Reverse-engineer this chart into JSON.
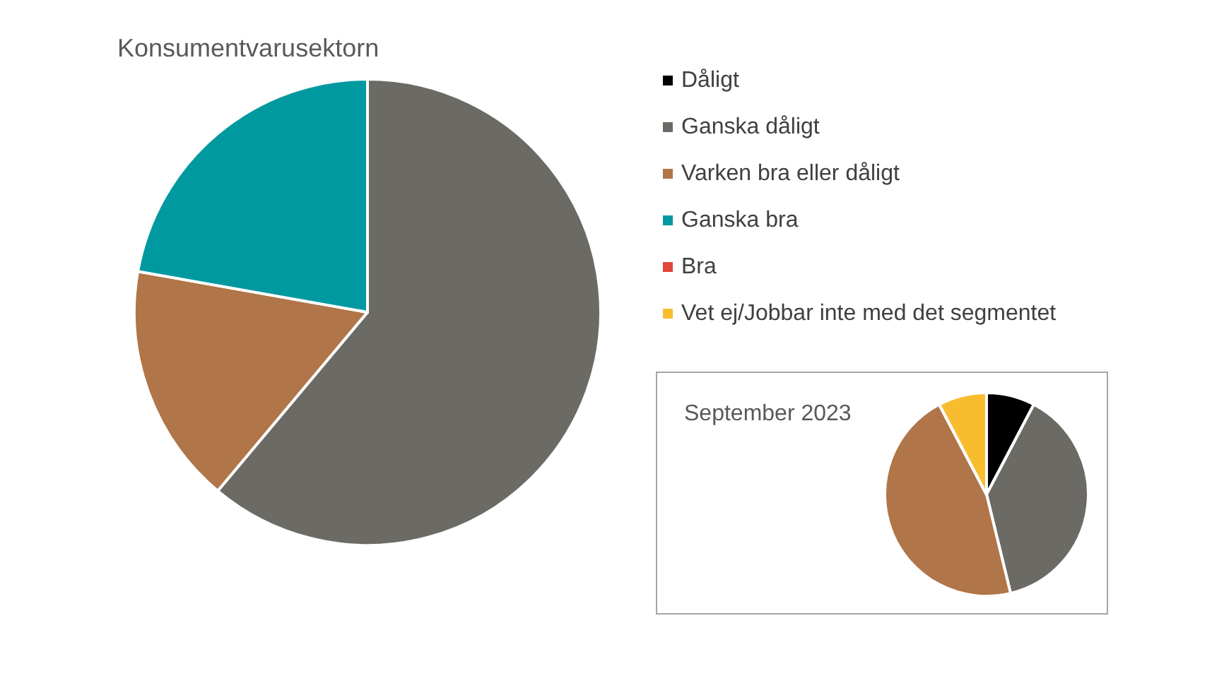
{
  "chart_data": [
    {
      "type": "pie",
      "title": "Konsumentvarusektorn",
      "categories": [
        "Dåligt",
        "Ganska dåligt",
        "Varken bra eller dåligt",
        "Ganska bra",
        "Bra",
        "Vet ej/Jobbar inte med det segmentet"
      ],
      "values": [
        0,
        61.1,
        16.7,
        22.2,
        0,
        0
      ],
      "colors": [
        "#000000",
        "#6b6a65",
        "#b07548",
        "#00999f",
        "#e0463a",
        "#f8bd2f"
      ],
      "legend": "right"
    },
    {
      "type": "pie",
      "title": "September 2023",
      "categories": [
        null,
        null,
        null,
        null,
        null,
        null
      ],
      "values": [
        7.7,
        38.5,
        46.1,
        0,
        0,
        7.7
      ],
      "colors": [
        "#000000",
        "#6b6a65",
        "#b07548",
        "#00999f",
        "#e0463a",
        "#f8bd2f"
      ]
    }
  ]
}
